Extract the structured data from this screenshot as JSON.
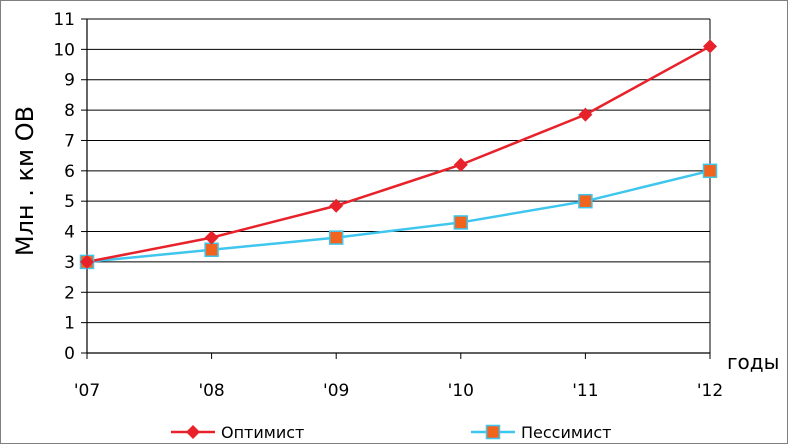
{
  "chart_data": {
    "type": "line",
    "categories": [
      "'07",
      "'08",
      "'09",
      "'10",
      "'11",
      "'12"
    ],
    "series": [
      {
        "name": "Оптимист",
        "values": [
          3.0,
          3.8,
          4.85,
          6.2,
          7.85,
          10.1
        ],
        "color": "#e8222a",
        "marker": "diamond"
      },
      {
        "name": "Пессимист",
        "values": [
          3.0,
          3.4,
          3.8,
          4.3,
          5.0,
          6.0
        ],
        "color": "#3fc6ee",
        "marker": "square",
        "marker_color": "#f2641e"
      }
    ],
    "xlabel": "годы",
    "ylabel": "Млн . км ОВ",
    "ylim": [
      0,
      11
    ],
    "yticks": [
      0,
      1,
      2,
      3,
      4,
      5,
      6,
      7,
      8,
      9,
      10,
      11
    ],
    "grid": true,
    "legend_position": "bottom"
  }
}
